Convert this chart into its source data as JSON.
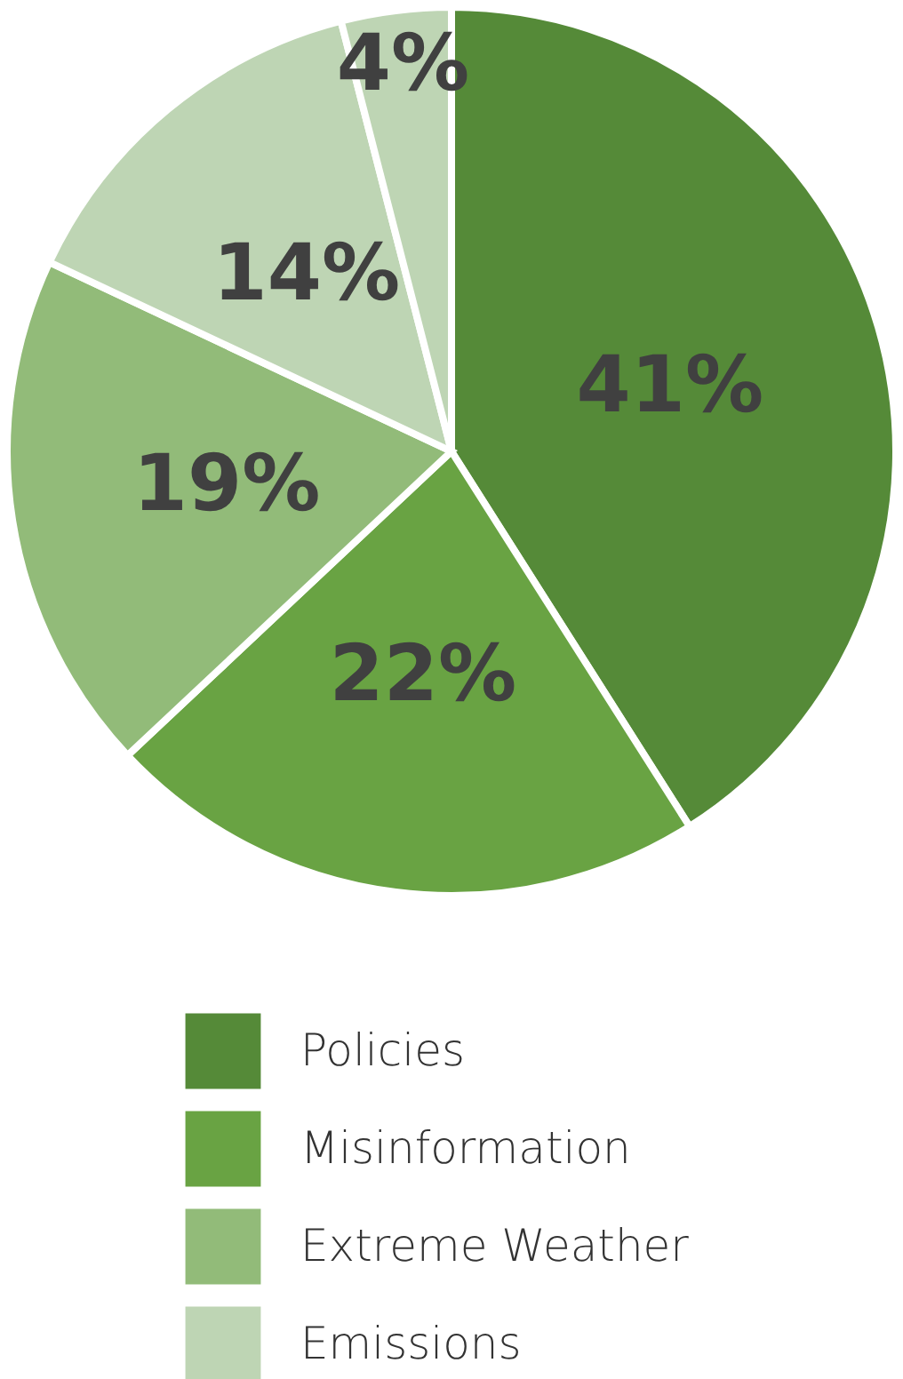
{
  "chart_data": {
    "type": "pie",
    "categories": [
      "Policies",
      "Misinformation",
      "Extreme Weather",
      "Emissions",
      null
    ],
    "values": [
      41,
      22,
      19,
      14,
      4
    ],
    "colors": [
      "#558a38",
      "#69a343",
      "#92bb79",
      "#bed5b4",
      "#bed5b4"
    ],
    "value_labels": [
      "41%",
      "22%",
      "19%",
      "14%",
      "4%"
    ],
    "legend": "bottom"
  }
}
